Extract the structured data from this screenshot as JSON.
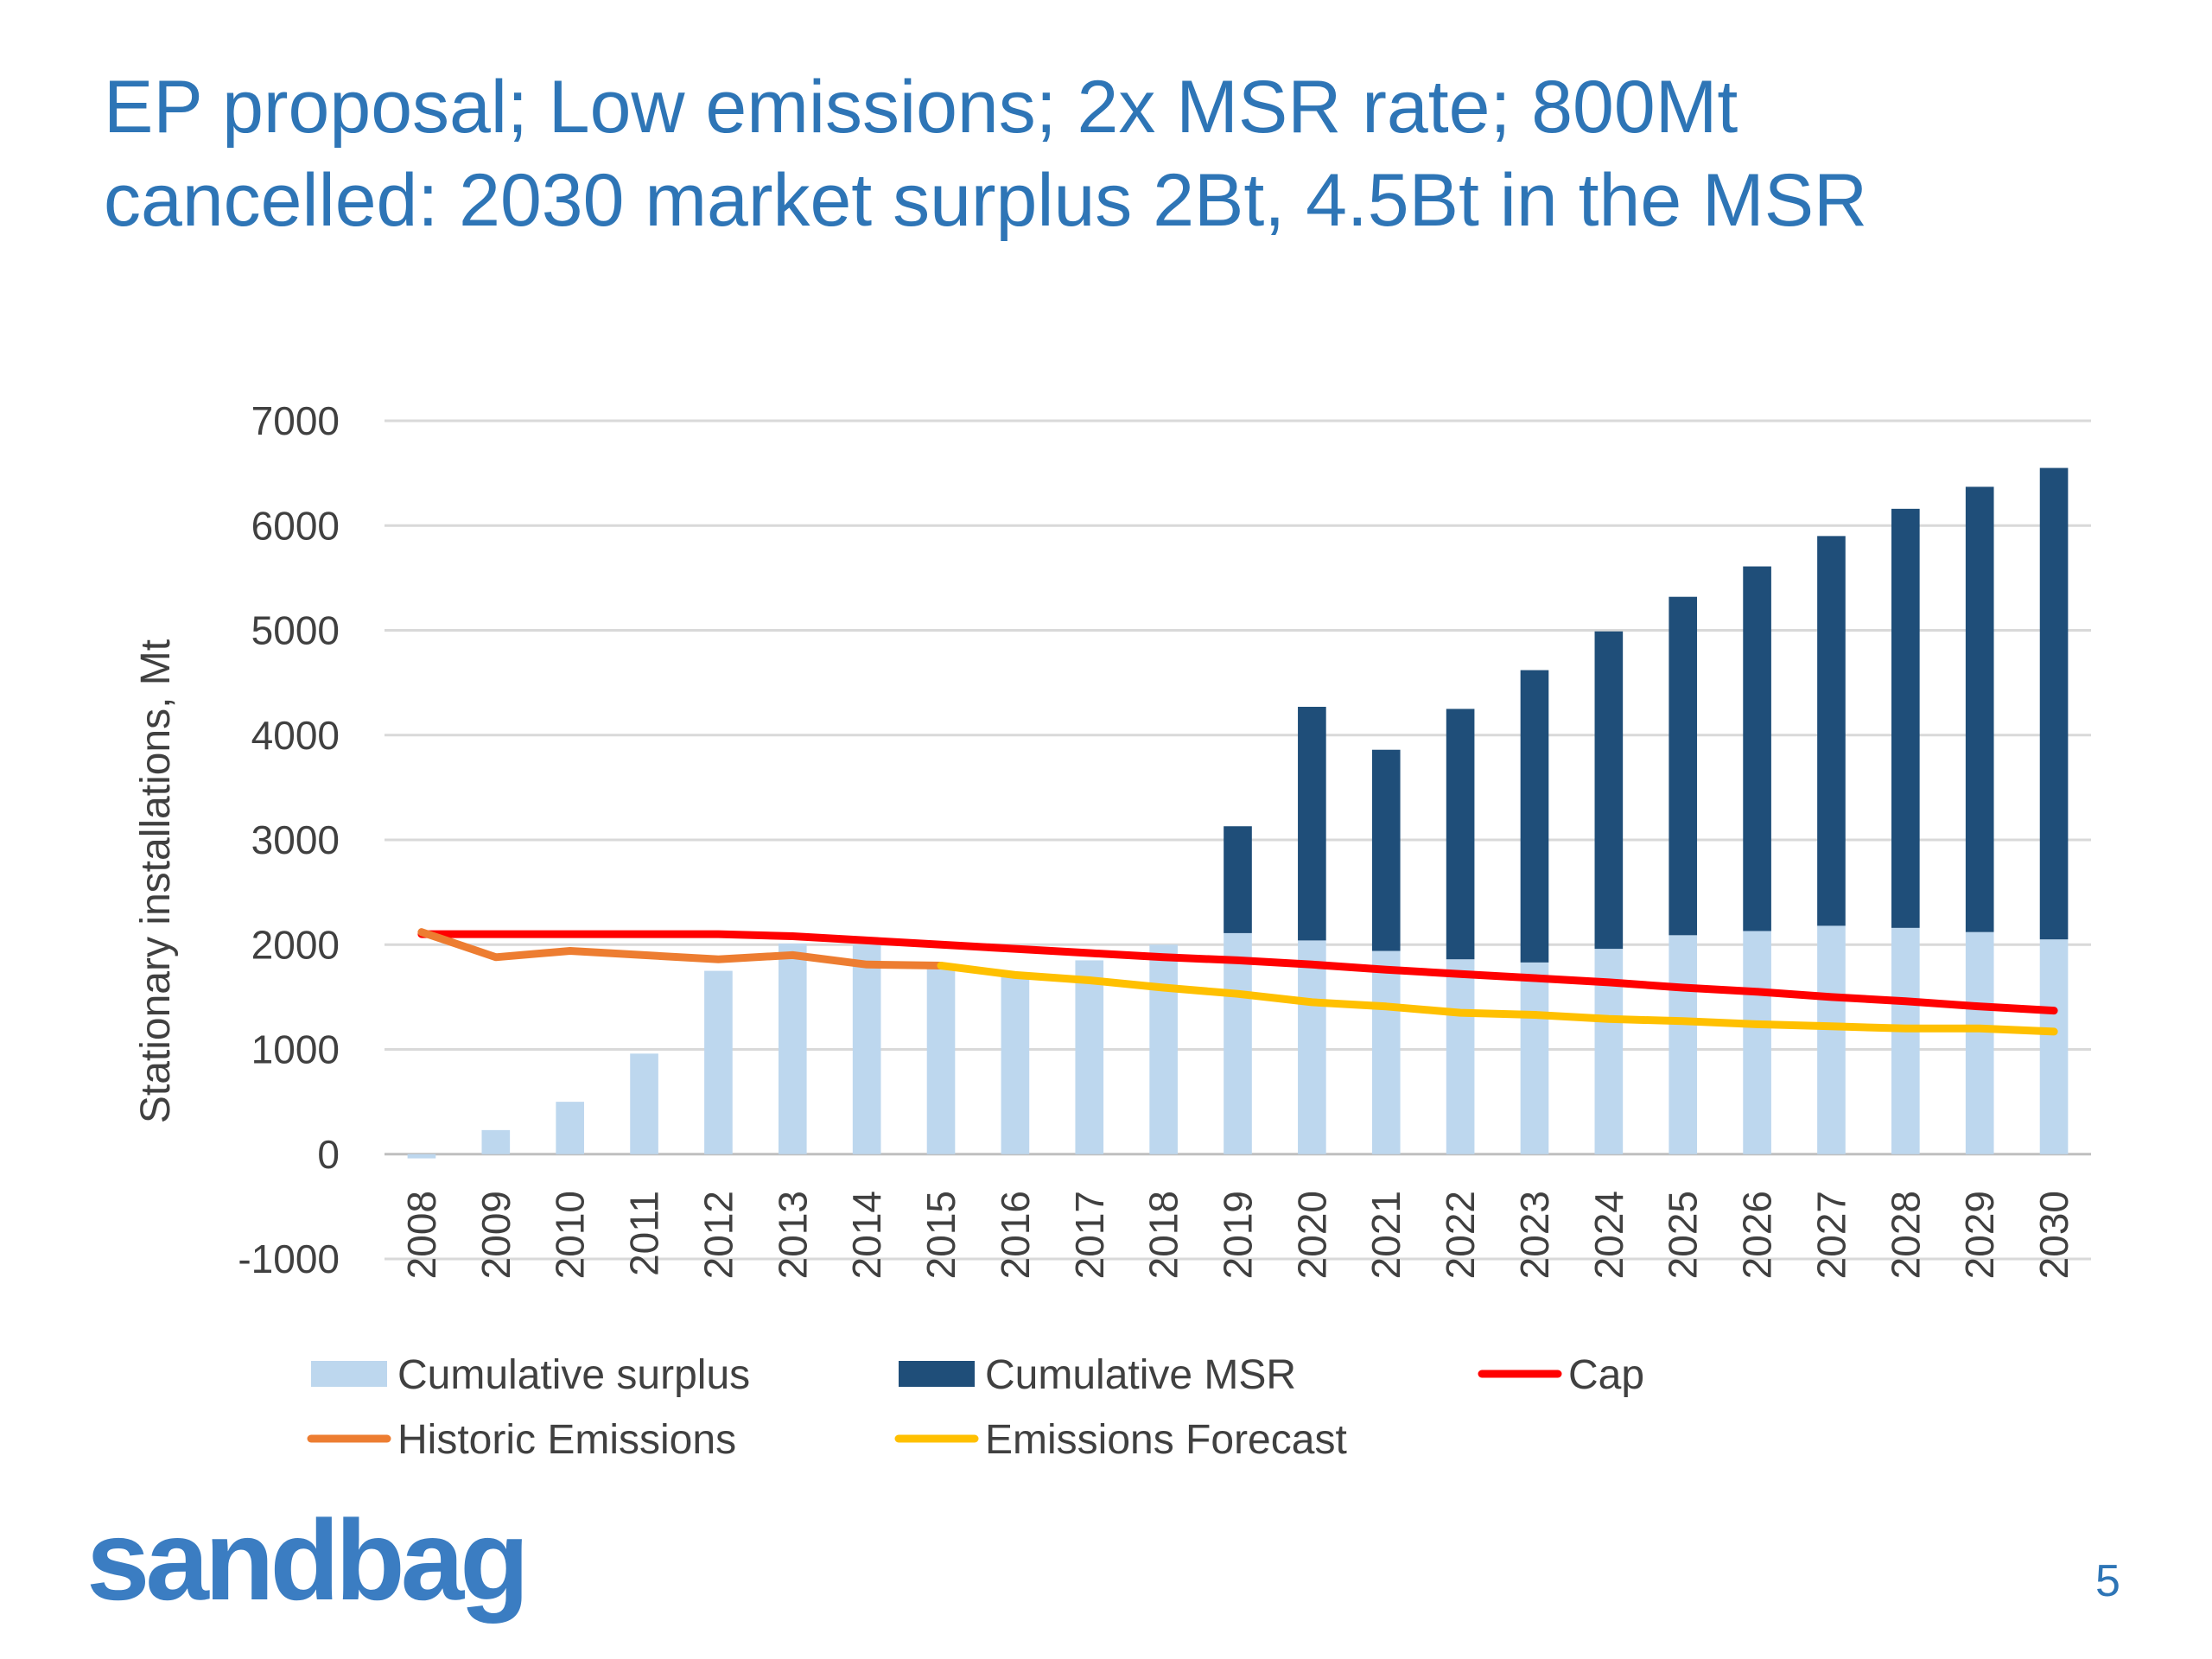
{
  "slide": {
    "title_line1": "EP proposal; Low emissions; 2x MSR rate; 800Mt",
    "title_line2": "cancelled: 2030 market surplus 2Bt, 4.5Bt in the MSR",
    "logo_text": "sandbag",
    "page_number": "5"
  },
  "colors": {
    "title": "#2e75b6",
    "surplus": "#bdd7ee",
    "msr": "#1f4e79",
    "cap": "#ff0000",
    "historic": "#ed7d31",
    "forecast": "#ffc000",
    "logo": "#3b7dc2"
  },
  "chart_data": {
    "type": "bar",
    "stacked": true,
    "title": "",
    "xlabel": "",
    "ylabel": "Stationary installations, Mt",
    "ylim": [
      -1000,
      7000
    ],
    "yticks": [
      "7000",
      "6000",
      "5000",
      "4000",
      "3000",
      "2000",
      "1000",
      "0",
      "-1000"
    ],
    "grid": true,
    "legend_position": "bottom",
    "categories": [
      "2008",
      "2009",
      "2010",
      "2011",
      "2012",
      "2013",
      "2014",
      "2015",
      "2016",
      "2017",
      "2018",
      "2019",
      "2020",
      "2021",
      "2022",
      "2023",
      "2024",
      "2025",
      "2026",
      "2027",
      "2028",
      "2029",
      "2030"
    ],
    "series": [
      {
        "name": "Cumulative surplus",
        "kind": "bar",
        "color": "#bdd7ee",
        "values": [
          -40,
          230,
          500,
          960,
          1750,
          2010,
          2000,
          1790,
          1700,
          1850,
          2000,
          2110,
          2040,
          1940,
          1860,
          1830,
          1960,
          2090,
          2130,
          2180,
          2160,
          2120,
          2050
        ]
      },
      {
        "name": "Cumulative MSR",
        "kind": "bar",
        "color": "#1f4e79",
        "values": [
          0,
          0,
          0,
          0,
          0,
          0,
          0,
          0,
          0,
          0,
          0,
          1020,
          2230,
          1920,
          2390,
          2790,
          3030,
          3230,
          3480,
          3720,
          4000,
          4250,
          4500
        ]
      },
      {
        "name": "Cap",
        "kind": "line",
        "color": "#ff0000",
        "values": [
          2100,
          2100,
          2100,
          2100,
          2100,
          2080,
          2040,
          2000,
          1960,
          1920,
          1880,
          1850,
          1810,
          1760,
          1720,
          1680,
          1640,
          1590,
          1550,
          1500,
          1460,
          1410,
          1370
        ]
      },
      {
        "name": "Historic Emissions",
        "kind": "line",
        "color": "#ed7d31",
        "values": [
          2120,
          1880,
          1940,
          1900,
          1860,
          1900,
          1810,
          1800,
          null,
          null,
          null,
          null,
          null,
          null,
          null,
          null,
          null,
          null,
          null,
          null,
          null,
          null,
          null
        ]
      },
      {
        "name": "Emissions Forecast",
        "kind": "line",
        "color": "#ffc000",
        "values": [
          null,
          null,
          null,
          null,
          null,
          null,
          null,
          1800,
          1710,
          1660,
          1590,
          1530,
          1450,
          1410,
          1350,
          1330,
          1290,
          1270,
          1240,
          1220,
          1200,
          1200,
          1170
        ]
      }
    ]
  }
}
